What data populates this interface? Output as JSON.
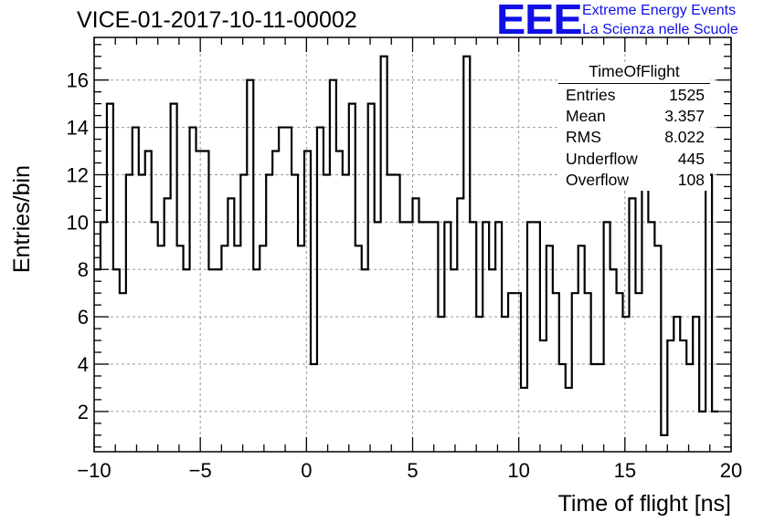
{
  "title": "VICE-01-2017-10-11-00002",
  "logo": {
    "mark": "EEE",
    "line1": "Extreme Energy Events",
    "line2": "La Scienza nelle Scuole",
    "color": "#1010e6"
  },
  "stats_box": {
    "name": "TimeOfFlight",
    "rows": [
      {
        "label": "Entries",
        "value": "1525"
      },
      {
        "label": "Mean",
        "value": "3.357"
      },
      {
        "label": "RMS",
        "value": "8.022"
      },
      {
        "label": "Underflow",
        "value": "445"
      },
      {
        "label": "Overflow",
        "value": "108"
      }
    ]
  },
  "chart_data": {
    "type": "histogram",
    "title": "VICE-01-2017-10-11-00002",
    "xlabel": "Time of flight [ns]",
    "ylabel": "Entries/bin",
    "xlim": [
      -10,
      20
    ],
    "ylim": [
      0.3,
      17.8
    ],
    "bin_width": 0.3,
    "x_ticks": [
      -10,
      -5,
      0,
      5,
      10,
      15,
      20
    ],
    "y_ticks": [
      2,
      4,
      6,
      8,
      10,
      12,
      14,
      16
    ],
    "x_tick_labels": [
      "−10",
      "−5",
      "0",
      "5",
      "10",
      "15",
      "20"
    ],
    "y_tick_labels": [
      "2",
      "4",
      "6",
      "8",
      "10",
      "12",
      "14",
      "16"
    ],
    "grid": true,
    "line_color": "#000000",
    "values": [
      8,
      10,
      15,
      8,
      7,
      12,
      14,
      12,
      13,
      10,
      9,
      11,
      15,
      9,
      8,
      14,
      13,
      13,
      8,
      8,
      9,
      11,
      9,
      12,
      16,
      8,
      9,
      12,
      13,
      14,
      14,
      12,
      9,
      13,
      4,
      14,
      12,
      16,
      13,
      12,
      15,
      9,
      8,
      15,
      10,
      17,
      12,
      12,
      10,
      10,
      11,
      10,
      10,
      10,
      6,
      10,
      8,
      11,
      17,
      10,
      6,
      10,
      8,
      10,
      6,
      7,
      7,
      3,
      10,
      10,
      5,
      9,
      7,
      4,
      3,
      7,
      9,
      7,
      4,
      4,
      10,
      8,
      7,
      6,
      11,
      7,
      12,
      10,
      9,
      1,
      5,
      6,
      5,
      4,
      6,
      2,
      12,
      2
    ]
  }
}
